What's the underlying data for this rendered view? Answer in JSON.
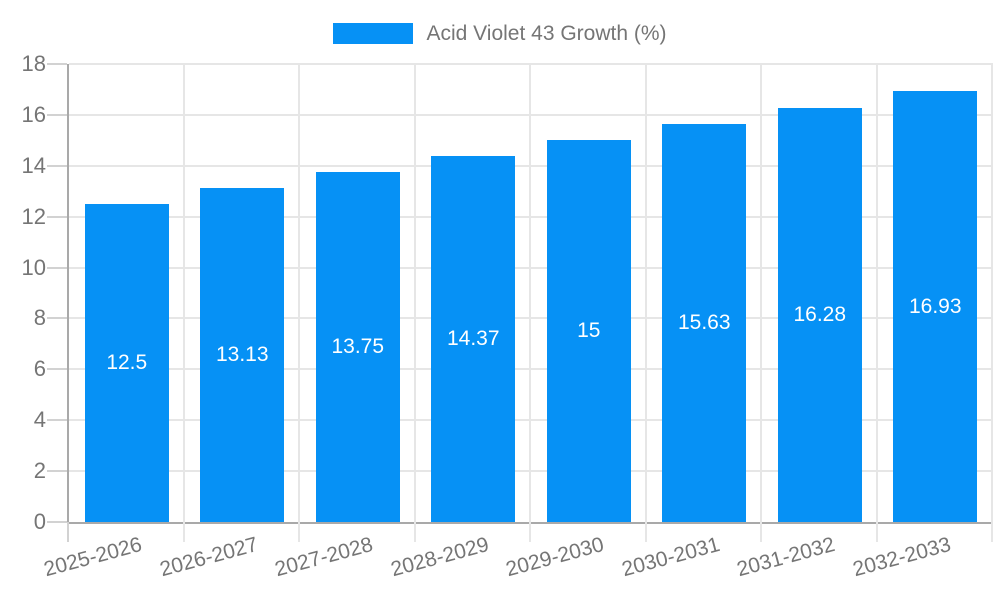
{
  "legend": {
    "label": "Acid Violet 43 Growth (%)"
  },
  "colors": {
    "bar": "#0691f5",
    "axis": "#a9a9a9",
    "grid": "#e6e6e6",
    "tick": "#d2d2d2",
    "axis_text": "#757575",
    "value_text": "#ffffff"
  },
  "chart_data": {
    "type": "bar",
    "title": "",
    "legend_entries": [
      "Acid Violet 43 Growth (%)"
    ],
    "legend_position": "top-center",
    "categories": [
      "2025-2026",
      "2026-2027",
      "2027-2028",
      "2028-2029",
      "2029-2030",
      "2030-2031",
      "2031-2032",
      "2032-2033"
    ],
    "values": [
      12.5,
      13.13,
      13.75,
      14.37,
      15,
      15.63,
      16.28,
      16.93
    ],
    "value_labels": [
      "12.5",
      "13.13",
      "13.75",
      "14.37",
      "15",
      "15.63",
      "16.28",
      "16.93"
    ],
    "xlabel": "",
    "ylabel": "",
    "ylim": [
      0,
      18
    ],
    "yticks": [
      0,
      2,
      4,
      6,
      8,
      10,
      12,
      14,
      16,
      18
    ],
    "grid": true
  }
}
